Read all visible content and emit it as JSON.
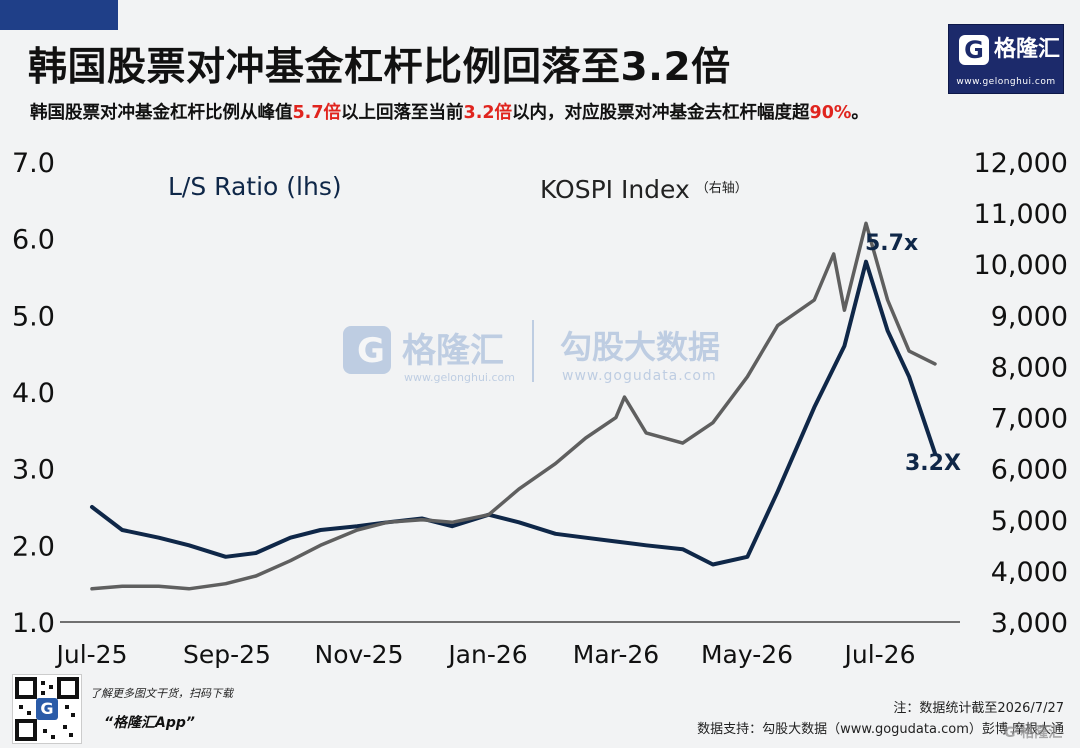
{
  "header": {
    "title": "韩国股票对冲基金杠杆比例回落至3.2倍",
    "subtitle_parts": [
      {
        "text": "韩国股票对冲基金杠杆比例从峰值",
        "highlight": false
      },
      {
        "text": "5.7倍",
        "highlight": true
      },
      {
        "text": "以上回落至当前",
        "highlight": false
      },
      {
        "text": "3.2倍",
        "highlight": true
      },
      {
        "text": "以内，对应股票对冲基金去杠杆幅度超",
        "highlight": false
      },
      {
        "text": "90%",
        "highlight": true
      },
      {
        "text": "。",
        "highlight": false
      }
    ],
    "highlight_color": "#e0241e"
  },
  "logo": {
    "g": "G",
    "name": "格隆汇",
    "url": "www.gelonghui.com"
  },
  "watermark": {
    "brand1": "格隆汇",
    "url1": "www.gelonghui.com",
    "brand2": "勾股大数据",
    "url2": "www.gogudata.com"
  },
  "chart_data": {
    "type": "line",
    "x_labels": [
      "Jul-25",
      "Sep-25",
      "Nov-25",
      "Jan-26",
      "Mar-26",
      "May-26",
      "Jul-26"
    ],
    "x_range": [
      "2025-07-01",
      "2026-07-27"
    ],
    "left_axis": {
      "ylim": [
        1.0,
        7.0
      ],
      "ticks": [
        "1.0",
        "2.0",
        "3.0",
        "4.0",
        "5.0",
        "6.0",
        "7.0"
      ]
    },
    "right_axis": {
      "ylim": [
        3000,
        12000
      ],
      "ticks": [
        "3,000",
        "4,000",
        "5,000",
        "6,000",
        "7,000",
        "8,000",
        "9,000",
        "10,000",
        "11,000",
        "12,000"
      ]
    },
    "series": [
      {
        "name": "L/S Ratio (lhs)",
        "axis": "left",
        "color": "#0f2748",
        "x": [
          "2025-07-01",
          "2025-07-15",
          "2025-08-01",
          "2025-08-15",
          "2025-09-01",
          "2025-09-15",
          "2025-10-01",
          "2025-10-15",
          "2025-11-01",
          "2025-11-15",
          "2025-12-01",
          "2025-12-15",
          "2026-01-01",
          "2026-01-15",
          "2026-02-01",
          "2026-02-15",
          "2026-03-01",
          "2026-03-15",
          "2026-04-01",
          "2026-04-15",
          "2026-05-01",
          "2026-05-15",
          "2026-06-01",
          "2026-06-15",
          "2026-06-25",
          "2026-07-05",
          "2026-07-15",
          "2026-07-27"
        ],
        "values": [
          2.5,
          2.2,
          2.1,
          2.0,
          1.85,
          1.9,
          2.1,
          2.2,
          2.25,
          2.3,
          2.35,
          2.25,
          2.4,
          2.3,
          2.15,
          2.1,
          2.05,
          2.0,
          1.95,
          1.75,
          1.85,
          2.7,
          3.8,
          4.6,
          5.7,
          4.8,
          4.2,
          3.2
        ]
      },
      {
        "name": "KOSPI Index（右轴）",
        "axis": "right",
        "color": "#5f5f5f",
        "x": [
          "2025-07-01",
          "2025-07-15",
          "2025-08-01",
          "2025-08-15",
          "2025-09-01",
          "2025-09-15",
          "2025-10-01",
          "2025-10-15",
          "2025-11-01",
          "2025-11-15",
          "2025-12-01",
          "2025-12-15",
          "2026-01-01",
          "2026-01-15",
          "2026-02-01",
          "2026-02-15",
          "2026-03-01",
          "2026-03-05",
          "2026-03-15",
          "2026-04-01",
          "2026-04-15",
          "2026-05-01",
          "2026-05-15",
          "2026-06-01",
          "2026-06-10",
          "2026-06-15",
          "2026-06-25",
          "2026-07-05",
          "2026-07-15",
          "2026-07-27"
        ],
        "values": [
          3650,
          3700,
          3700,
          3650,
          3750,
          3900,
          4200,
          4500,
          4800,
          4950,
          5000,
          4950,
          5100,
          5600,
          6100,
          6600,
          7000,
          7400,
          6700,
          6500,
          6900,
          7800,
          8800,
          9300,
          10200,
          9100,
          10800,
          9300,
          8300,
          8050
        ]
      }
    ],
    "annotations": [
      {
        "text": "5.7x",
        "series": "left",
        "x": "2026-06-25",
        "y": 5.7
      },
      {
        "text": "3.2X",
        "series": "left",
        "x": "2026-07-27",
        "y": 3.2
      }
    ]
  },
  "footer": {
    "promo_line": "了解更多图文干货，扫码下载",
    "app_name": "“格隆汇App”",
    "qr_center": "G",
    "note": "注：数据统计截至2026/7/27",
    "source": "数据支持：勾股大数据（www.gogudata.com）彭博 摩根大通",
    "corner_mark": "G 格隆汇"
  }
}
